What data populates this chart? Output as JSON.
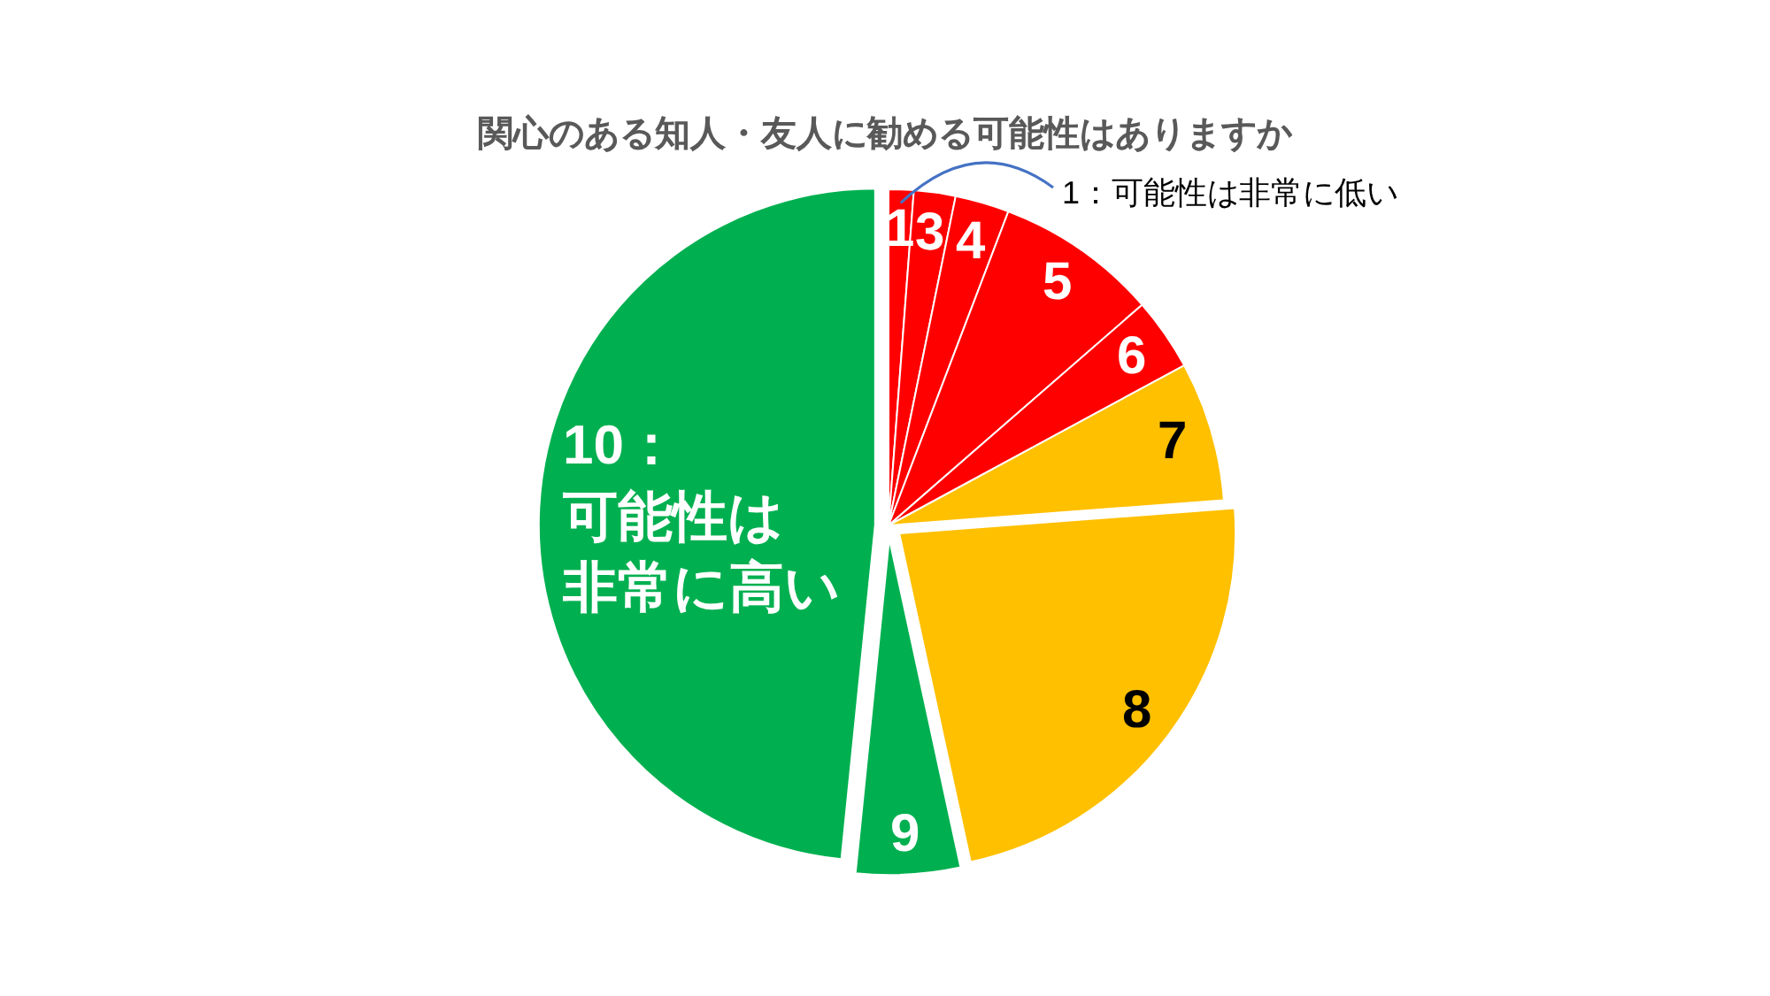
{
  "chart_data": {
    "type": "pie",
    "title": "関心のある知人・友人に勧める可能性はありますか",
    "categories": [
      "1",
      "3",
      "4",
      "5",
      "6",
      "7",
      "8",
      "9",
      "10：可能性は非常に高い"
    ],
    "values": [
      1.2,
      2,
      2.6,
      7.8,
      3.5,
      6.7,
      22.8,
      5,
      48.4
    ],
    "colors": [
      "#ff0000",
      "#ff0000",
      "#ff0000",
      "#ff0000",
      "#ff0000",
      "#ffc000",
      "#ffc000",
      "#00b050",
      "#00b050"
    ],
    "annotations": [
      "1：可能性は非常に低い"
    ]
  }
}
